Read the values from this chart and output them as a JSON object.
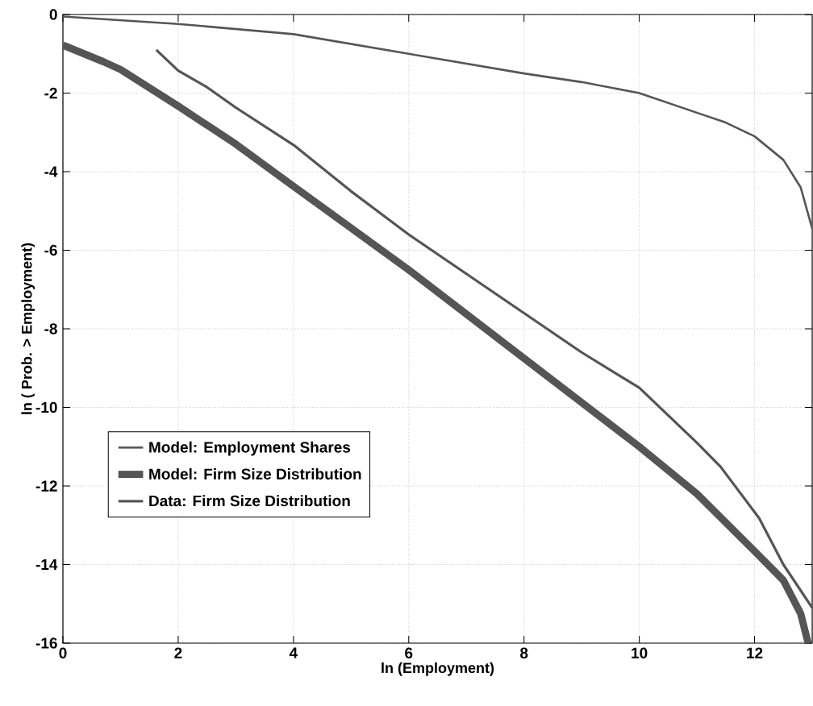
{
  "chart_data": {
    "type": "line",
    "xlabel": "ln (Employment)",
    "ylabel": "ln ( Prob. > Employment)",
    "xlim": [
      0,
      13
    ],
    "ylim": [
      -16,
      0
    ],
    "xticks": [
      0,
      2,
      4,
      6,
      8,
      10,
      12
    ],
    "yticks": [
      -16,
      -14,
      -12,
      -10,
      -8,
      -6,
      -4,
      -2,
      0
    ],
    "grid": true,
    "legend": "bottom left",
    "line_style": "solid",
    "marker": "none",
    "series": [
      {
        "name": "Model: Employment Shares",
        "color": "#555555",
        "x": [
          0,
          2,
          4,
          6,
          8,
          9,
          10,
          11,
          11.5,
          12,
          12.5,
          12.8,
          13
        ],
        "values": [
          -0.05,
          -0.24,
          -0.5,
          -1.0,
          -1.5,
          -1.72,
          -2.0,
          -2.5,
          -2.75,
          -3.1,
          -3.7,
          -4.4,
          -5.45
        ]
      },
      {
        "name": "Model: Firm Size Distribution",
        "color": "#555555",
        "x": [
          0,
          0.7,
          1,
          2,
          3,
          4,
          6,
          8,
          10,
          11,
          12,
          12.5,
          12.8,
          12.93
        ],
        "values": [
          -0.78,
          -1.2,
          -1.4,
          -2.33,
          -3.3,
          -4.37,
          -6.5,
          -8.75,
          -11.0,
          -12.2,
          -13.66,
          -14.4,
          -15.25,
          -16
        ]
      },
      {
        "name": "Data: Firm Size Distribution",
        "color": "#555555",
        "x": [
          1.62,
          2,
          2.5,
          3,
          4,
          5,
          6,
          7,
          8,
          9,
          10,
          11,
          11.41,
          12.08,
          12.5,
          13
        ],
        "values": [
          -0.9,
          -1.43,
          -1.85,
          -2.37,
          -3.32,
          -4.5,
          -5.6,
          -6.6,
          -7.6,
          -8.6,
          -9.5,
          -10.9,
          -11.51,
          -12.82,
          -14.0,
          -15.1
        ]
      }
    ]
  }
}
